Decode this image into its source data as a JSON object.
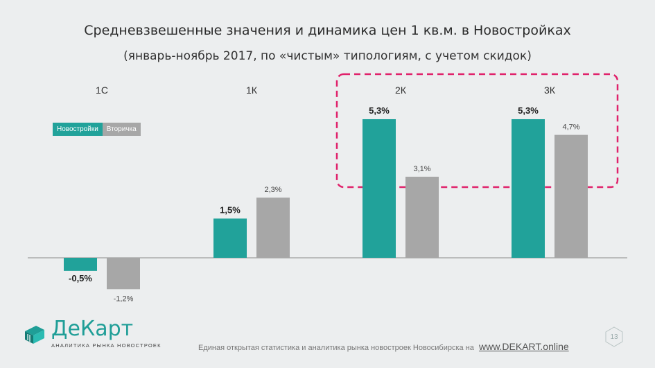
{
  "title": "Средневзвешенные значения и динамика цен 1 кв.м. в Новостройках",
  "subtitle": "(январь-ноябрь 2017, по «чистым» типологиям, с учетом скидок)",
  "colors": {
    "new": "#21a29a",
    "secondary": "#a7a7a7",
    "highlight": "#e0226b"
  },
  "chart_data": {
    "type": "bar",
    "categories": [
      "1С",
      "1К",
      "2К",
      "3К"
    ],
    "series": [
      {
        "name": "Новостройки",
        "values": [
          -0.5,
          1.5,
          5.3,
          5.3
        ],
        "labels": [
          "-0,5%",
          "1,5%",
          "5,3%",
          "5,3%"
        ]
      },
      {
        "name": "Вторичка",
        "values": [
          -1.2,
          2.3,
          3.1,
          4.7
        ],
        "labels": [
          "-1,2%",
          "2,3%",
          "3,1%",
          "4,7%"
        ]
      }
    ],
    "unit": "%",
    "legend": "top-left",
    "highlighted_categories": [
      "2К",
      "3К"
    ]
  },
  "footer": {
    "text": "Единая открытая статистика и аналитика рынка новостроек Новосибирска на",
    "link": "www.DEKART.online"
  },
  "logo": {
    "name": "ДеКарт",
    "tagline": "АНАЛИТИКА РЫНКА НОВОСТРОЕК"
  },
  "page_number": "13"
}
